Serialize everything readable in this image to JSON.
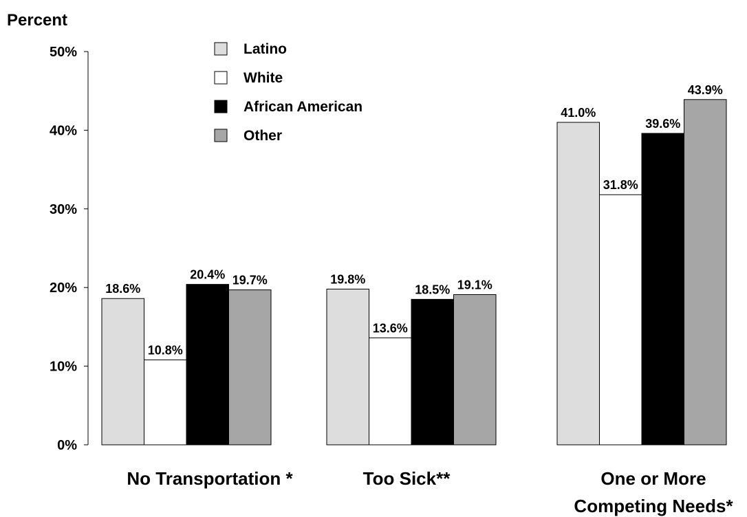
{
  "chart_data": {
    "type": "bar",
    "ylabel": "Percent",
    "xlabel": "",
    "ylim": [
      0,
      50
    ],
    "yticks": [
      0,
      10,
      20,
      30,
      40,
      50
    ],
    "ytick_labels": [
      "0%",
      "10%",
      "20%",
      "30%",
      "40%",
      "50%"
    ],
    "legend_position": "top-center",
    "categories": [
      [
        "No Transportation *"
      ],
      [
        "Too Sick**"
      ],
      [
        "One or More",
        "Competing Needs*"
      ]
    ],
    "series": [
      {
        "name": "Latino",
        "color": "#dddddd",
        "values": [
          18.6,
          19.8,
          41.0
        ],
        "labels": [
          "18.6%",
          "19.8%",
          "41.0%"
        ]
      },
      {
        "name": "White",
        "color": "#ffffff",
        "values": [
          10.8,
          13.6,
          31.8
        ],
        "labels": [
          "10.8%",
          "13.6%",
          "31.8%"
        ]
      },
      {
        "name": "African American",
        "color": "#000000",
        "values": [
          20.4,
          18.5,
          39.6
        ],
        "labels": [
          "20.4%",
          "18.5%",
          "39.6%"
        ]
      },
      {
        "name": "Other",
        "color": "#a6a6a6",
        "values": [
          19.7,
          19.1,
          43.9
        ],
        "labels": [
          "19.7%",
          "19.1%",
          "43.9%"
        ]
      }
    ]
  }
}
